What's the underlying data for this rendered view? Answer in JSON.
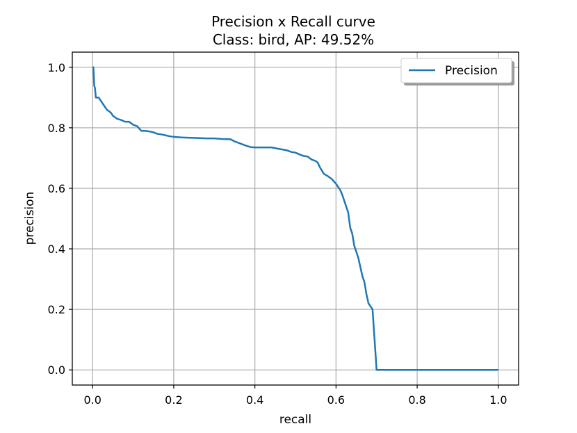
{
  "chart_data": {
    "type": "line",
    "title": "Precision x Recall curve",
    "subtitle": "Class: bird, AP: 49.52%",
    "xlabel": "recall",
    "ylabel": "precision",
    "xlim": [
      -0.05,
      1.05
    ],
    "ylim": [
      -0.05,
      1.05
    ],
    "xticks": [
      0.0,
      0.2,
      0.4,
      0.6,
      0.8,
      1.0
    ],
    "xtick_labels": [
      "0.0",
      "0.2",
      "0.4",
      "0.6",
      "0.8",
      "1.0"
    ],
    "yticks": [
      0.0,
      0.2,
      0.4,
      0.6,
      0.8,
      1.0
    ],
    "ytick_labels": [
      "0.0",
      "0.2",
      "0.4",
      "0.6",
      "0.8",
      "1.0"
    ],
    "grid": true,
    "legend_position": "top-right",
    "series": [
      {
        "name": "Precision",
        "color": "#1f77b4",
        "x": [
          0.0,
          0.002,
          0.004,
          0.006,
          0.008,
          0.01,
          0.015,
          0.02,
          0.025,
          0.03,
          0.035,
          0.04,
          0.045,
          0.05,
          0.055,
          0.06,
          0.065,
          0.07,
          0.08,
          0.09,
          0.1,
          0.11,
          0.12,
          0.125,
          0.13,
          0.14,
          0.15,
          0.16,
          0.17,
          0.18,
          0.19,
          0.2,
          0.22,
          0.24,
          0.26,
          0.28,
          0.3,
          0.32,
          0.34,
          0.35,
          0.36,
          0.37,
          0.38,
          0.39,
          0.4,
          0.42,
          0.44,
          0.45,
          0.46,
          0.47,
          0.48,
          0.49,
          0.5,
          0.51,
          0.52,
          0.53,
          0.54,
          0.55,
          0.555,
          0.56,
          0.57,
          0.58,
          0.59,
          0.6,
          0.605,
          0.61,
          0.615,
          0.62,
          0.625,
          0.63,
          0.635,
          0.64,
          0.645,
          0.65,
          0.655,
          0.66,
          0.665,
          0.67,
          0.675,
          0.68,
          0.685,
          0.69,
          0.695,
          0.7,
          0.75,
          0.8,
          0.9,
          1.0
        ],
        "y": [
          1.0,
          1.0,
          0.94,
          0.93,
          0.9,
          0.9,
          0.9,
          0.89,
          0.88,
          0.87,
          0.86,
          0.855,
          0.85,
          0.84,
          0.835,
          0.83,
          0.828,
          0.826,
          0.82,
          0.82,
          0.81,
          0.805,
          0.79,
          0.79,
          0.79,
          0.788,
          0.785,
          0.78,
          0.778,
          0.775,
          0.772,
          0.77,
          0.768,
          0.767,
          0.766,
          0.765,
          0.765,
          0.763,
          0.762,
          0.755,
          0.75,
          0.745,
          0.74,
          0.736,
          0.735,
          0.735,
          0.735,
          0.733,
          0.73,
          0.728,
          0.725,
          0.72,
          0.718,
          0.712,
          0.707,
          0.705,
          0.695,
          0.69,
          0.685,
          0.67,
          0.648,
          0.64,
          0.63,
          0.615,
          0.605,
          0.595,
          0.58,
          0.56,
          0.54,
          0.52,
          0.47,
          0.45,
          0.41,
          0.39,
          0.37,
          0.34,
          0.31,
          0.29,
          0.25,
          0.22,
          0.21,
          0.2,
          0.1,
          0.0,
          0.0,
          0.0,
          0.0,
          0.0
        ]
      }
    ]
  }
}
